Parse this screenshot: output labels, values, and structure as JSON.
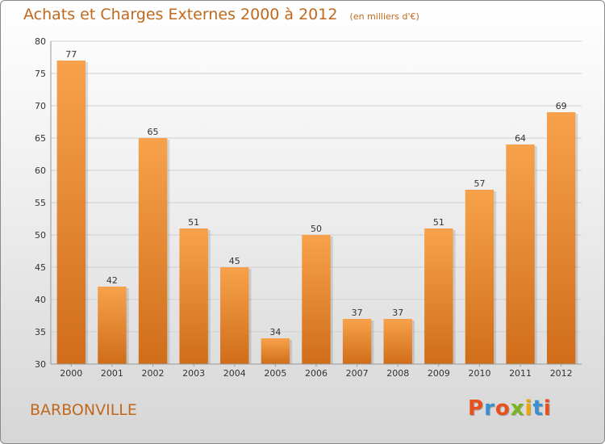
{
  "header": {
    "title": "Achats et Charges Externes 2000 à 2012",
    "unit": "(en milliers d'€)"
  },
  "footer": {
    "town": "BARBONVILLE",
    "logo": "Proxiti"
  },
  "colors": {
    "bar_top": "#f7a24b",
    "bar_bottom": "#d06d1a",
    "title": "#c0691e",
    "grid": "#cfcfcf",
    "logo_letters": [
      "#e8501e",
      "#3a8fd0",
      "#e8501e",
      "#7ab51d",
      "#f0a500",
      "#3a8fd0",
      "#e8501e"
    ]
  },
  "chart_data": {
    "type": "bar",
    "categories": [
      "2000",
      "2001",
      "2002",
      "2003",
      "2004",
      "2005",
      "2006",
      "2007",
      "2008",
      "2009",
      "2010",
      "2011",
      "2012"
    ],
    "values": [
      77,
      42,
      65,
      51,
      45,
      34,
      50,
      37,
      37,
      51,
      57,
      64,
      69
    ],
    "ylim": [
      30,
      80
    ],
    "yticks": [
      30,
      35,
      40,
      45,
      50,
      55,
      60,
      65,
      70,
      75,
      80
    ],
    "grid": true,
    "title": "Achats et Charges Externes 2000 à 2012",
    "xlabel": "",
    "ylabel": ""
  }
}
